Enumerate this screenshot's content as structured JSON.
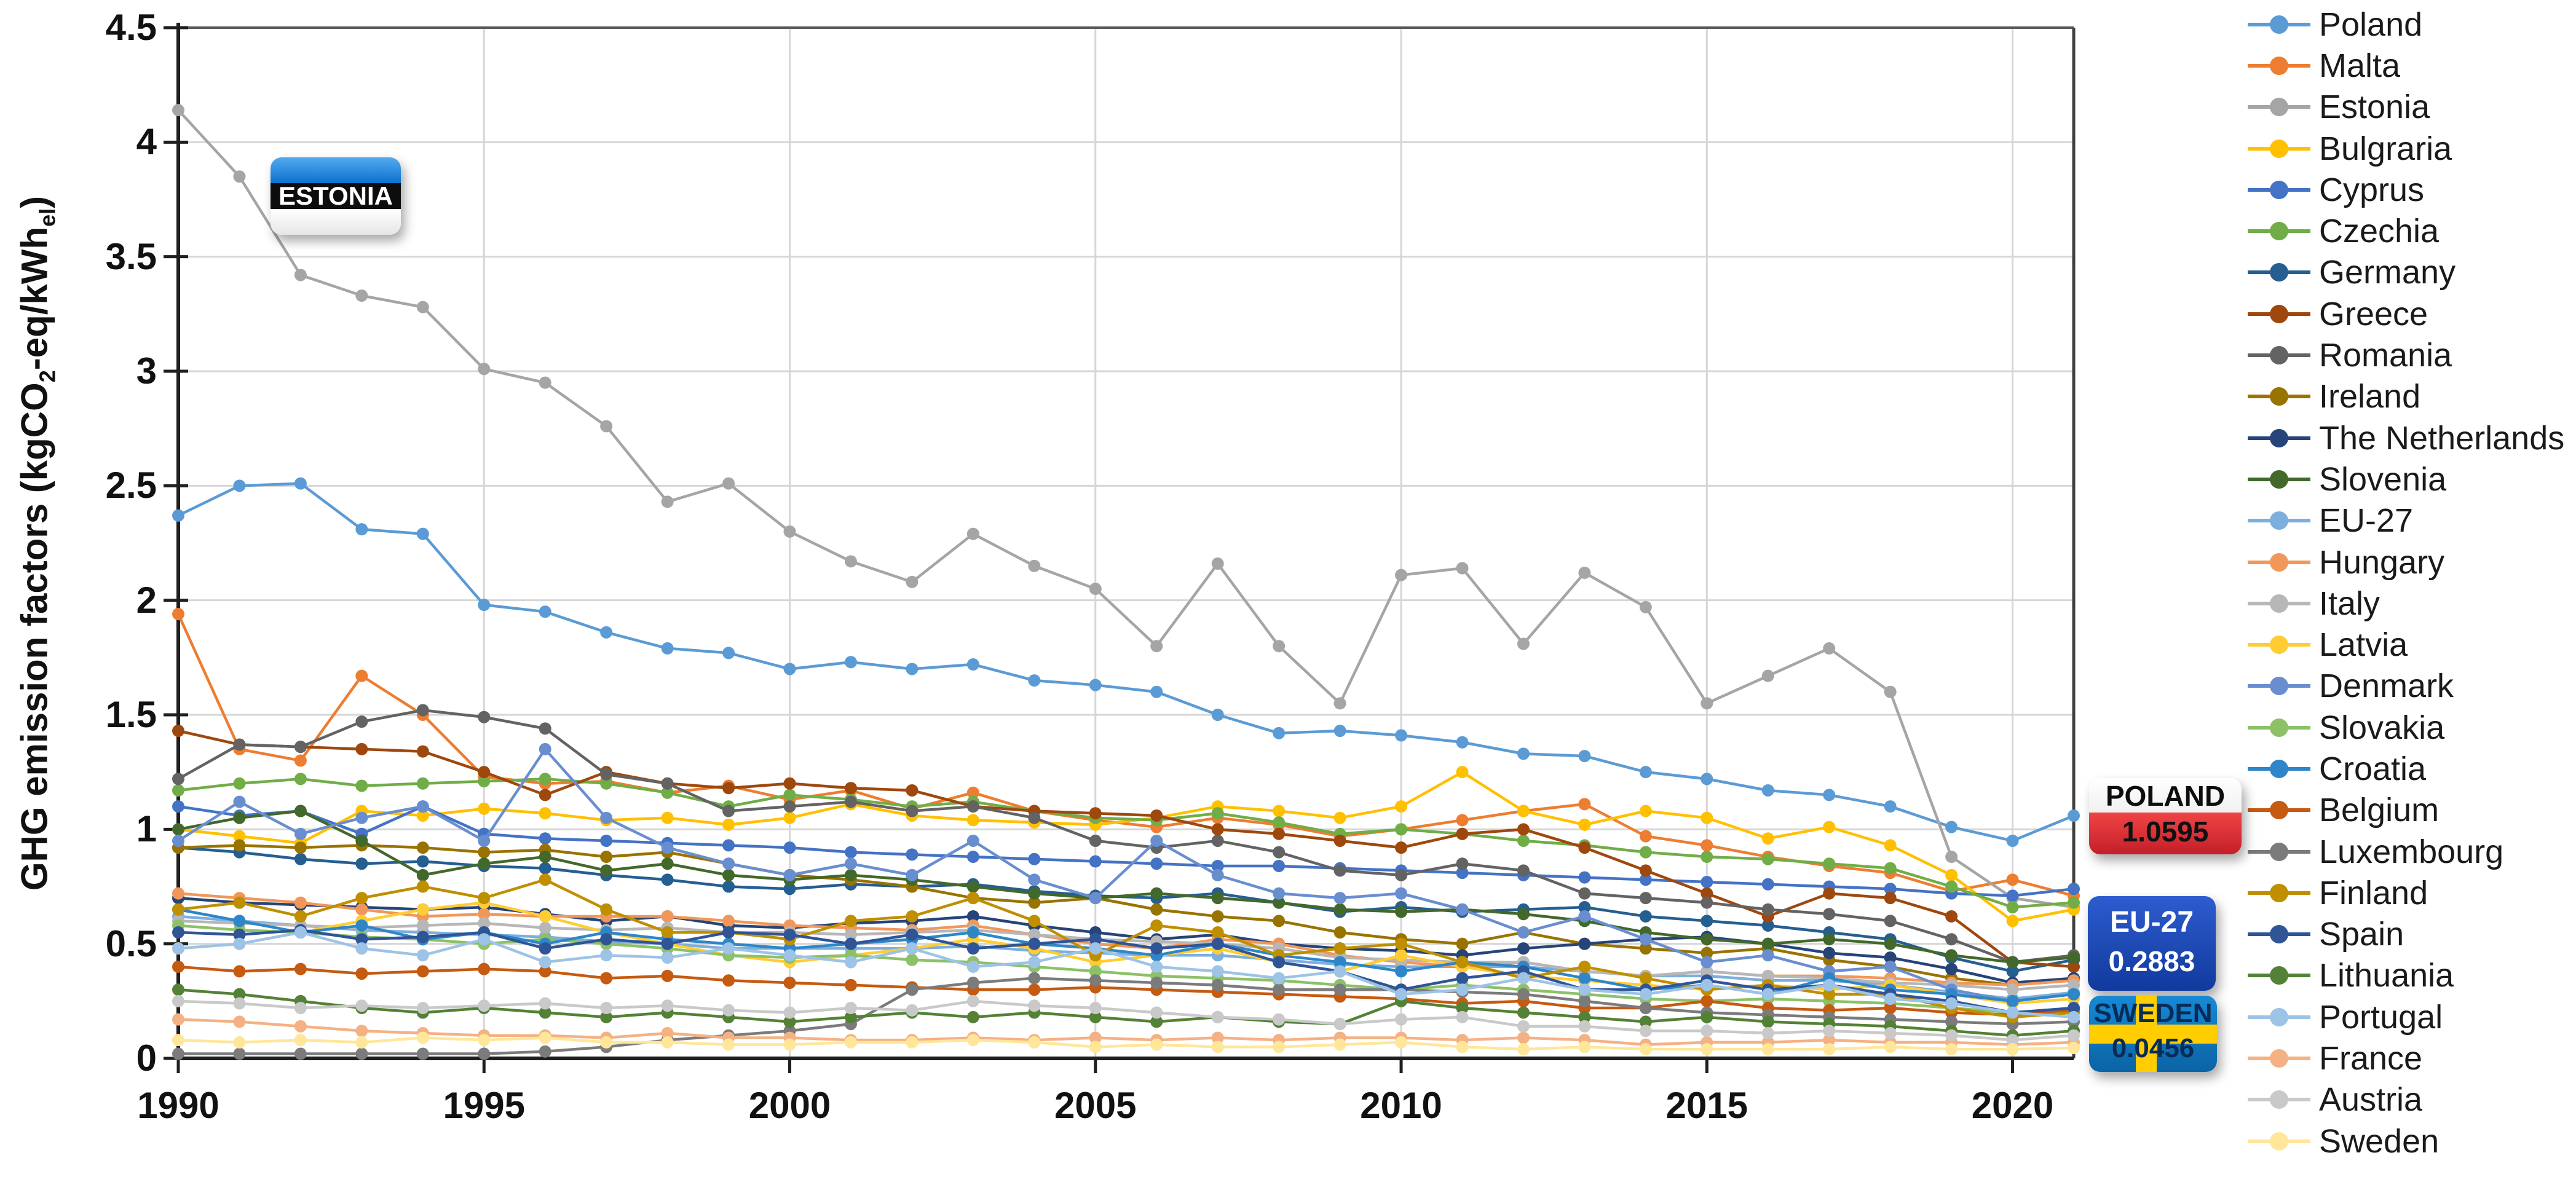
{
  "callouts": {
    "estonia": {
      "label": "ESTONIA"
    },
    "poland": {
      "label": "POLAND",
      "value": "1.0595"
    },
    "eu27": {
      "label": "EU-27",
      "value": "0.2883"
    },
    "sweden": {
      "label": "SWEDEN",
      "value": "0.0456"
    }
  },
  "chart_data": {
    "type": "line",
    "title": "",
    "xlabel": "",
    "ylabel_parts": [
      "GHG emission factors (kgCO",
      "2",
      "-eq/kWh",
      "el",
      ")"
    ],
    "x": [
      1990,
      1991,
      1992,
      1993,
      1994,
      1995,
      1996,
      1997,
      1998,
      1999,
      2000,
      2001,
      2002,
      2003,
      2004,
      2005,
      2006,
      2007,
      2008,
      2009,
      2010,
      2011,
      2012,
      2013,
      2014,
      2015,
      2016,
      2017,
      2018,
      2019,
      2020,
      2021
    ],
    "x_ticks": [
      1990,
      1995,
      2000,
      2005,
      2010,
      2015,
      2020
    ],
    "y_ticks": [
      0,
      0.5,
      1,
      1.5,
      2,
      2.5,
      3,
      3.5,
      4,
      4.5
    ],
    "ylim": [
      0,
      4.5
    ],
    "grid": true,
    "legend_position": "right",
    "gridline_color": "#d6d6d6",
    "axis_color": "#1f1f1f",
    "series": [
      {
        "name": "Poland",
        "color": "#5B9BD5",
        "values": [
          2.37,
          2.5,
          2.51,
          2.31,
          2.29,
          1.98,
          1.95,
          1.86,
          1.79,
          1.77,
          1.7,
          1.73,
          1.7,
          1.72,
          1.65,
          1.63,
          1.6,
          1.5,
          1.42,
          1.43,
          1.41,
          1.38,
          1.33,
          1.32,
          1.25,
          1.22,
          1.17,
          1.15,
          1.1,
          1.01,
          0.95,
          1.0595
        ]
      },
      {
        "name": "Malta",
        "color": "#ED7D31",
        "values": [
          1.94,
          1.35,
          1.3,
          1.67,
          1.5,
          1.23,
          1.2,
          1.21,
          1.16,
          1.19,
          1.13,
          1.17,
          1.09,
          1.16,
          1.08,
          1.04,
          1.01,
          1.05,
          1.02,
          0.97,
          1.0,
          1.04,
          1.08,
          1.11,
          0.97,
          0.93,
          0.88,
          0.84,
          0.81,
          0.73,
          0.78,
          0.71
        ]
      },
      {
        "name": "Estonia",
        "color": "#A5A5A5",
        "values": [
          4.14,
          3.85,
          3.42,
          3.33,
          3.28,
          3.01,
          2.95,
          2.76,
          2.43,
          2.51,
          2.3,
          2.17,
          2.08,
          2.29,
          2.15,
          2.05,
          1.8,
          2.16,
          1.8,
          1.55,
          2.11,
          2.14,
          1.81,
          2.12,
          1.97,
          1.55,
          1.67,
          1.79,
          1.6,
          0.88,
          0.7,
          0.66
        ]
      },
      {
        "name": "Bulgraria",
        "color": "#FFC000",
        "values": [
          1.0,
          0.97,
          0.94,
          1.08,
          1.06,
          1.09,
          1.07,
          1.04,
          1.05,
          1.02,
          1.05,
          1.11,
          1.06,
          1.04,
          1.03,
          1.02,
          1.05,
          1.1,
          1.08,
          1.05,
          1.1,
          1.25,
          1.08,
          1.02,
          1.08,
          1.05,
          0.96,
          1.01,
          0.93,
          0.8,
          0.6,
          0.65
        ]
      },
      {
        "name": "Cyprus",
        "color": "#4472C4",
        "values": [
          1.1,
          1.06,
          1.08,
          0.98,
          1.1,
          0.98,
          0.96,
          0.95,
          0.94,
          0.93,
          0.92,
          0.9,
          0.89,
          0.88,
          0.87,
          0.86,
          0.85,
          0.84,
          0.84,
          0.83,
          0.82,
          0.81,
          0.8,
          0.79,
          0.78,
          0.77,
          0.76,
          0.75,
          0.74,
          0.72,
          0.71,
          0.74
        ]
      },
      {
        "name": "Czechia",
        "color": "#70AD47",
        "values": [
          1.17,
          1.2,
          1.22,
          1.19,
          1.2,
          1.21,
          1.22,
          1.2,
          1.16,
          1.1,
          1.15,
          1.13,
          1.1,
          1.12,
          1.08,
          1.05,
          1.04,
          1.07,
          1.03,
          0.98,
          1.0,
          0.98,
          0.95,
          0.93,
          0.9,
          0.88,
          0.87,
          0.85,
          0.83,
          0.75,
          0.66,
          0.68
        ]
      },
      {
        "name": "Germany",
        "color": "#255E91",
        "values": [
          0.92,
          0.9,
          0.87,
          0.85,
          0.86,
          0.84,
          0.83,
          0.8,
          0.78,
          0.75,
          0.74,
          0.76,
          0.75,
          0.76,
          0.73,
          0.71,
          0.7,
          0.72,
          0.68,
          0.64,
          0.66,
          0.64,
          0.65,
          0.66,
          0.62,
          0.6,
          0.58,
          0.55,
          0.52,
          0.44,
          0.38,
          0.43
        ]
      },
      {
        "name": "Greece",
        "color": "#9E480E",
        "values": [
          1.43,
          1.37,
          1.36,
          1.35,
          1.34,
          1.25,
          1.15,
          1.25,
          1.2,
          1.18,
          1.2,
          1.18,
          1.17,
          1.1,
          1.08,
          1.07,
          1.06,
          1.0,
          0.98,
          0.95,
          0.92,
          0.98,
          1.0,
          0.92,
          0.82,
          0.72,
          0.62,
          0.72,
          0.7,
          0.62,
          0.42,
          0.4
        ]
      },
      {
        "name": "Romania",
        "color": "#636363",
        "values": [
          1.22,
          1.37,
          1.36,
          1.47,
          1.52,
          1.49,
          1.44,
          1.24,
          1.2,
          1.08,
          1.1,
          1.12,
          1.08,
          1.1,
          1.05,
          0.95,
          0.92,
          0.95,
          0.9,
          0.82,
          0.8,
          0.85,
          0.82,
          0.72,
          0.7,
          0.68,
          0.65,
          0.63,
          0.6,
          0.52,
          0.42,
          0.45
        ]
      },
      {
        "name": "Ireland",
        "color": "#997300",
        "values": [
          0.92,
          0.93,
          0.92,
          0.93,
          0.92,
          0.9,
          0.91,
          0.88,
          0.9,
          0.85,
          0.8,
          0.78,
          0.75,
          0.7,
          0.68,
          0.7,
          0.65,
          0.62,
          0.6,
          0.55,
          0.52,
          0.5,
          0.55,
          0.5,
          0.48,
          0.46,
          0.48,
          0.43,
          0.4,
          0.35,
          0.32,
          0.35
        ]
      },
      {
        "name": "The Netherlands",
        "color": "#264478",
        "values": [
          0.7,
          0.68,
          0.67,
          0.66,
          0.65,
          0.66,
          0.63,
          0.6,
          0.62,
          0.58,
          0.57,
          0.59,
          0.6,
          0.62,
          0.58,
          0.55,
          0.52,
          0.54,
          0.5,
          0.48,
          0.47,
          0.45,
          0.48,
          0.5,
          0.52,
          0.53,
          0.5,
          0.46,
          0.44,
          0.39,
          0.33,
          0.35
        ]
      },
      {
        "name": "Slovenia",
        "color": "#43682B",
        "values": [
          1.0,
          1.05,
          1.08,
          0.95,
          0.8,
          0.85,
          0.88,
          0.82,
          0.85,
          0.8,
          0.78,
          0.8,
          0.78,
          0.75,
          0.72,
          0.7,
          0.72,
          0.7,
          0.68,
          0.65,
          0.64,
          0.65,
          0.63,
          0.6,
          0.55,
          0.52,
          0.5,
          0.52,
          0.5,
          0.45,
          0.42,
          0.44
        ]
      },
      {
        "name": "EU-27",
        "color": "#7CAFDD",
        "values": [
          0.62,
          0.6,
          0.58,
          0.56,
          0.55,
          0.54,
          0.53,
          0.51,
          0.5,
          0.48,
          0.48,
          0.48,
          0.48,
          0.49,
          0.47,
          0.46,
          0.45,
          0.45,
          0.43,
          0.41,
          0.4,
          0.4,
          0.4,
          0.38,
          0.36,
          0.36,
          0.34,
          0.34,
          0.32,
          0.29,
          0.26,
          0.2883
        ]
      },
      {
        "name": "Hungary",
        "color": "#F1975A",
        "values": [
          0.72,
          0.7,
          0.68,
          0.65,
          0.62,
          0.63,
          0.62,
          0.62,
          0.62,
          0.6,
          0.58,
          0.57,
          0.56,
          0.58,
          0.54,
          0.5,
          0.48,
          0.52,
          0.5,
          0.45,
          0.42,
          0.4,
          0.42,
          0.38,
          0.36,
          0.38,
          0.36,
          0.36,
          0.35,
          0.33,
          0.32,
          0.34
        ]
      },
      {
        "name": "Italy",
        "color": "#B7B7B7",
        "values": [
          0.6,
          0.59,
          0.58,
          0.57,
          0.58,
          0.59,
          0.57,
          0.56,
          0.57,
          0.55,
          0.55,
          0.54,
          0.55,
          0.56,
          0.54,
          0.52,
          0.51,
          0.5,
          0.48,
          0.44,
          0.43,
          0.42,
          0.42,
          0.38,
          0.36,
          0.38,
          0.36,
          0.35,
          0.33,
          0.32,
          0.3,
          0.32
        ]
      },
      {
        "name": "Latvia",
        "color": "#FFCD33",
        "values": [
          0.48,
          0.5,
          0.55,
          0.6,
          0.65,
          0.68,
          0.62,
          0.55,
          0.5,
          0.45,
          0.42,
          0.45,
          0.48,
          0.52,
          0.48,
          0.42,
          0.45,
          0.48,
          0.42,
          0.38,
          0.45,
          0.4,
          0.36,
          0.34,
          0.32,
          0.3,
          0.32,
          0.3,
          0.32,
          0.28,
          0.24,
          0.26
        ]
      },
      {
        "name": "Denmark",
        "color": "#698ED0",
        "values": [
          0.95,
          1.12,
          0.98,
          1.05,
          1.1,
          0.95,
          1.35,
          1.05,
          0.92,
          0.85,
          0.8,
          0.85,
          0.8,
          0.95,
          0.78,
          0.7,
          0.95,
          0.8,
          0.72,
          0.7,
          0.72,
          0.65,
          0.55,
          0.62,
          0.52,
          0.42,
          0.45,
          0.38,
          0.4,
          0.3,
          0.25,
          0.28
        ]
      },
      {
        "name": "Slovakia",
        "color": "#8CC168",
        "values": [
          0.58,
          0.56,
          0.55,
          0.53,
          0.52,
          0.5,
          0.52,
          0.5,
          0.48,
          0.45,
          0.44,
          0.45,
          0.43,
          0.42,
          0.4,
          0.38,
          0.36,
          0.35,
          0.34,
          0.32,
          0.3,
          0.32,
          0.3,
          0.28,
          0.26,
          0.25,
          0.26,
          0.25,
          0.24,
          0.22,
          0.2,
          0.22
        ]
      },
      {
        "name": "Croatia",
        "color": "#2E86C8",
        "values": [
          0.65,
          0.6,
          0.55,
          0.58,
          0.52,
          0.55,
          0.5,
          0.55,
          0.52,
          0.5,
          0.48,
          0.5,
          0.52,
          0.55,
          0.5,
          0.48,
          0.45,
          0.5,
          0.45,
          0.42,
          0.38,
          0.42,
          0.4,
          0.35,
          0.3,
          0.32,
          0.28,
          0.35,
          0.3,
          0.28,
          0.25,
          0.28
        ]
      },
      {
        "name": "Belgium",
        "color": "#C55A11",
        "values": [
          0.4,
          0.38,
          0.39,
          0.37,
          0.38,
          0.39,
          0.38,
          0.35,
          0.36,
          0.34,
          0.33,
          0.32,
          0.31,
          0.3,
          0.3,
          0.31,
          0.3,
          0.29,
          0.28,
          0.27,
          0.26,
          0.24,
          0.25,
          0.22,
          0.22,
          0.25,
          0.22,
          0.21,
          0.22,
          0.2,
          0.19,
          0.21
        ]
      },
      {
        "name": "Luxembourg",
        "color": "#7B7B7B",
        "values": [
          0.02,
          0.02,
          0.02,
          0.02,
          0.02,
          0.02,
          0.03,
          0.05,
          0.08,
          0.1,
          0.12,
          0.15,
          0.3,
          0.33,
          0.35,
          0.34,
          0.33,
          0.32,
          0.3,
          0.3,
          0.3,
          0.29,
          0.28,
          0.25,
          0.22,
          0.2,
          0.19,
          0.18,
          0.17,
          0.16,
          0.15,
          0.16
        ]
      },
      {
        "name": "Finland",
        "color": "#BF8F00",
        "values": [
          0.65,
          0.68,
          0.62,
          0.7,
          0.75,
          0.7,
          0.78,
          0.65,
          0.55,
          0.55,
          0.52,
          0.6,
          0.62,
          0.7,
          0.6,
          0.45,
          0.58,
          0.55,
          0.45,
          0.48,
          0.5,
          0.42,
          0.35,
          0.4,
          0.35,
          0.3,
          0.32,
          0.28,
          0.28,
          0.22,
          0.18,
          0.2
        ]
      },
      {
        "name": "Spain",
        "color": "#2F5597",
        "values": [
          0.55,
          0.54,
          0.56,
          0.52,
          0.53,
          0.55,
          0.48,
          0.52,
          0.5,
          0.55,
          0.54,
          0.5,
          0.54,
          0.48,
          0.5,
          0.52,
          0.48,
          0.5,
          0.42,
          0.38,
          0.3,
          0.35,
          0.38,
          0.3,
          0.3,
          0.34,
          0.3,
          0.32,
          0.28,
          0.25,
          0.2,
          0.22
        ]
      },
      {
        "name": "Lithuania",
        "color": "#538135",
        "values": [
          0.3,
          0.28,
          0.25,
          0.22,
          0.2,
          0.22,
          0.2,
          0.18,
          0.2,
          0.18,
          0.16,
          0.18,
          0.2,
          0.18,
          0.2,
          0.18,
          0.16,
          0.18,
          0.16,
          0.15,
          0.25,
          0.22,
          0.2,
          0.18,
          0.16,
          0.18,
          0.16,
          0.15,
          0.14,
          0.12,
          0.1,
          0.12
        ]
      },
      {
        "name": "Portugal",
        "color": "#9DC3E6",
        "values": [
          0.48,
          0.5,
          0.55,
          0.48,
          0.45,
          0.52,
          0.42,
          0.45,
          0.44,
          0.48,
          0.45,
          0.42,
          0.48,
          0.4,
          0.42,
          0.48,
          0.4,
          0.38,
          0.35,
          0.38,
          0.28,
          0.3,
          0.35,
          0.3,
          0.28,
          0.32,
          0.28,
          0.32,
          0.26,
          0.24,
          0.2,
          0.18
        ]
      },
      {
        "name": "France",
        "color": "#F4B183",
        "values": [
          0.17,
          0.16,
          0.14,
          0.12,
          0.11,
          0.1,
          0.1,
          0.09,
          0.11,
          0.09,
          0.09,
          0.08,
          0.08,
          0.09,
          0.08,
          0.09,
          0.08,
          0.09,
          0.08,
          0.09,
          0.09,
          0.08,
          0.09,
          0.08,
          0.06,
          0.07,
          0.07,
          0.08,
          0.07,
          0.07,
          0.06,
          0.07
        ]
      },
      {
        "name": "Austria",
        "color": "#C9C9C9",
        "values": [
          0.25,
          0.24,
          0.22,
          0.23,
          0.22,
          0.23,
          0.24,
          0.22,
          0.23,
          0.21,
          0.2,
          0.22,
          0.21,
          0.25,
          0.23,
          0.22,
          0.2,
          0.18,
          0.17,
          0.15,
          0.17,
          0.18,
          0.14,
          0.14,
          0.12,
          0.12,
          0.11,
          0.12,
          0.11,
          0.1,
          0.08,
          0.1
        ]
      },
      {
        "name": "Sweden",
        "color": "#FFE699",
        "values": [
          0.08,
          0.07,
          0.08,
          0.07,
          0.09,
          0.08,
          0.09,
          0.07,
          0.07,
          0.06,
          0.06,
          0.07,
          0.07,
          0.08,
          0.07,
          0.05,
          0.06,
          0.05,
          0.05,
          0.06,
          0.07,
          0.05,
          0.04,
          0.05,
          0.04,
          0.04,
          0.04,
          0.04,
          0.05,
          0.04,
          0.04,
          0.0456
        ]
      }
    ]
  }
}
